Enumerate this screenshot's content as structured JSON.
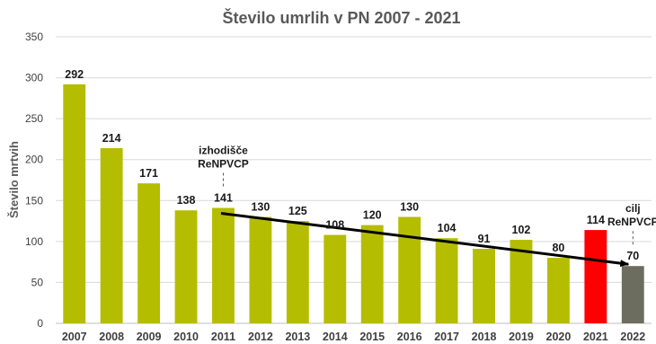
{
  "chart_data": {
    "type": "bar",
    "title": "Število umrlih v PN 2007 - 2021",
    "xlabel": "",
    "ylabel": "Število mrtvih",
    "ylim": [
      0,
      350
    ],
    "yticks": [
      0,
      50,
      100,
      150,
      200,
      250,
      300,
      350
    ],
    "grid": true,
    "legend": "none",
    "categories": [
      "2007",
      "2008",
      "2009",
      "2010",
      "2011",
      "2012",
      "2013",
      "2014",
      "2015",
      "2016",
      "2017",
      "2018",
      "2019",
      "2020",
      "2021",
      "2022"
    ],
    "values": [
      292,
      214,
      171,
      138,
      141,
      130,
      125,
      108,
      120,
      130,
      104,
      91,
      102,
      80,
      114,
      70
    ],
    "colors": [
      "#b5bd00",
      "#b5bd00",
      "#b5bd00",
      "#b5bd00",
      "#b5bd00",
      "#b5bd00",
      "#b5bd00",
      "#b5bd00",
      "#b5bd00",
      "#b5bd00",
      "#b5bd00",
      "#b5bd00",
      "#b5bd00",
      "#b5bd00",
      "#ff0000",
      "#6d6d5f"
    ],
    "trend_line": {
      "from": {
        "x": "2011",
        "y": 141
      },
      "to": {
        "x": "2022",
        "y": 70
      },
      "color": "#000000"
    },
    "annotations": [
      {
        "x": "2011",
        "lines": [
          "izhodišče",
          "ReNPVCP"
        ]
      },
      {
        "x": "2022",
        "lines": [
          "cilj",
          "ReNPVCP"
        ]
      }
    ]
  }
}
